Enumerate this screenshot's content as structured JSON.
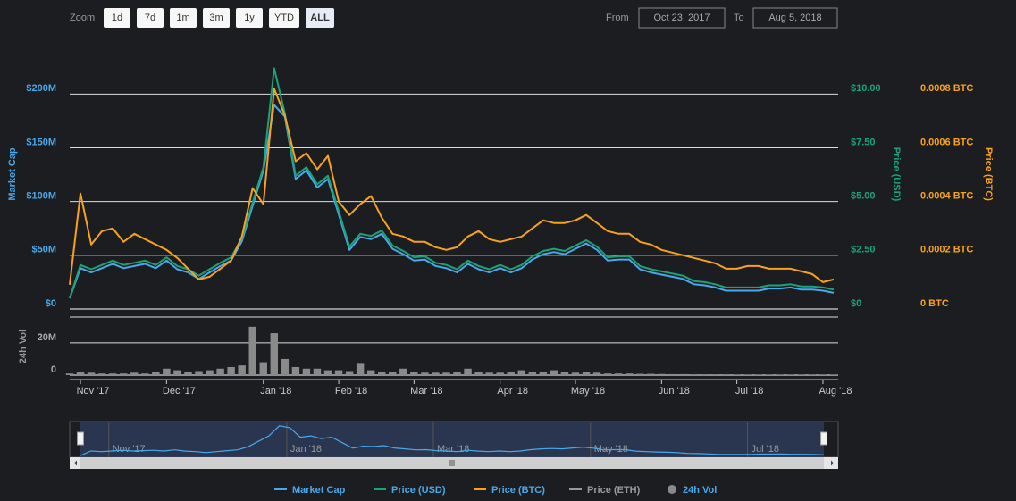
{
  "range_selector": {
    "label": "Zoom",
    "buttons": [
      "1d",
      "7d",
      "1m",
      "3m",
      "1y",
      "YTD",
      "ALL"
    ],
    "selected": 6
  },
  "date_range": {
    "from_label": "From",
    "from": "Oct 23, 2017",
    "to_label": "To",
    "to": "Aug 5, 2018"
  },
  "chart_data": {
    "type": "line",
    "y_axis_title": "Market Cap",
    "vol_axis_title": "24h Vol",
    "y2_axis_title": "Price (USD)",
    "y3_axis_title": "Price (BTC)",
    "categories": [
      null,
      "Nov '17",
      null,
      null,
      null,
      null,
      null,
      null,
      null,
      "Dec '17",
      null,
      null,
      null,
      null,
      null,
      null,
      null,
      null,
      "Jan '18",
      null,
      null,
      null,
      null,
      null,
      null,
      "Feb '18",
      null,
      null,
      null,
      null,
      null,
      null,
      "Mar '18",
      null,
      null,
      null,
      null,
      null,
      null,
      null,
      "Apr '18",
      null,
      null,
      null,
      null,
      null,
      null,
      "May '18",
      null,
      null,
      null,
      null,
      null,
      null,
      null,
      "Jun '18",
      null,
      null,
      null,
      null,
      null,
      null,
      "Jul '18",
      null,
      null,
      null,
      null,
      null,
      null,
      null,
      "Aug '18",
      null
    ],
    "series": [
      {
        "name": "Market Cap",
        "color": "#4aa8e8",
        "axis": "y",
        "values": [
          10,
          38,
          34,
          38,
          42,
          38,
          40,
          42,
          38,
          45,
          37,
          34,
          28,
          34,
          40,
          45,
          63,
          96,
          129,
          190,
          179,
          121,
          129,
          113,
          121,
          88,
          55,
          67,
          65,
          70,
          56,
          51,
          45,
          46,
          40,
          38,
          34,
          42,
          37,
          34,
          38,
          34,
          38,
          46,
          51,
          53,
          51,
          56,
          61,
          55,
          45,
          46,
          46,
          37,
          34,
          32,
          30,
          28,
          23,
          22,
          20,
          17,
          17,
          17,
          17,
          19,
          19,
          20,
          18,
          18,
          17,
          15
        ]
      },
      {
        "name": "Price (USD)",
        "color": "#1aa37a",
        "axis": "y2",
        "values": [
          0.5,
          2.05,
          1.85,
          2.05,
          2.25,
          2.05,
          2.15,
          2.25,
          2.05,
          2.4,
          2.0,
          1.85,
          1.55,
          1.85,
          2.15,
          2.4,
          3.3,
          4.95,
          6.6,
          11.2,
          9.1,
          6.2,
          6.6,
          5.8,
          6.2,
          4.55,
          2.9,
          3.5,
          3.4,
          3.65,
          2.95,
          2.7,
          2.4,
          2.45,
          2.15,
          2.05,
          1.85,
          2.25,
          2.0,
          1.85,
          2.05,
          1.85,
          2.05,
          2.45,
          2.7,
          2.8,
          2.7,
          2.95,
          3.2,
          2.9,
          2.4,
          2.45,
          2.45,
          2.0,
          1.85,
          1.75,
          1.65,
          1.55,
          1.3,
          1.25,
          1.15,
          1.0,
          1.0,
          1.0,
          1.0,
          1.1,
          1.1,
          1.15,
          1.05,
          1.05,
          1.0,
          0.9
        ]
      },
      {
        "name": "Price (BTC)",
        "color": "#f7a21b",
        "axis": "y3",
        "values": [
          9e-05,
          0.00043,
          0.00024,
          0.00029,
          0.0003,
          0.00025,
          0.00028,
          0.00026,
          0.00024,
          0.00022,
          0.00019,
          0.00015,
          0.00011,
          0.00012,
          0.00015,
          0.00018,
          0.00027,
          0.00045,
          0.00039,
          0.00082,
          0.00072,
          0.00055,
          0.00058,
          0.00052,
          0.00057,
          0.0004,
          0.00035,
          0.00039,
          0.00042,
          0.00034,
          0.00028,
          0.00027,
          0.00025,
          0.00025,
          0.00023,
          0.00022,
          0.00023,
          0.00027,
          0.00029,
          0.00026,
          0.00025,
          0.00026,
          0.00027,
          0.0003,
          0.00033,
          0.00032,
          0.00032,
          0.00033,
          0.00035,
          0.00032,
          0.00029,
          0.00028,
          0.00028,
          0.00025,
          0.00024,
          0.00022,
          0.00021,
          0.0002,
          0.00019,
          0.00018,
          0.00017,
          0.00015,
          0.00015,
          0.00016,
          0.00016,
          0.00015,
          0.00015,
          0.00015,
          0.00014,
          0.00013,
          0.0001,
          0.00011
        ]
      },
      {
        "name": "Price (ETH)",
        "color": "#999999",
        "visible": false
      },
      {
        "name": "24h Vol",
        "color": "#8a8a8a",
        "axis": "vol",
        "type": "column",
        "values": [
          1,
          2,
          1.5,
          1,
          1,
          1,
          1.5,
          1,
          2,
          4,
          3,
          2,
          2.5,
          3,
          4,
          5,
          6,
          30,
          8,
          26,
          10,
          5,
          4,
          4,
          3,
          3,
          2.5,
          7,
          3,
          2,
          2,
          4,
          2,
          1.5,
          1.5,
          1.5,
          2,
          4,
          2,
          1.5,
          1.5,
          2,
          3,
          2,
          2,
          3,
          2,
          1.5,
          2,
          1.5,
          1,
          1,
          1,
          0.8,
          0.8,
          0.7,
          0.6,
          0.6,
          0.5,
          0.5,
          0.5,
          0.5,
          0.4,
          0.4,
          0.4,
          0.4,
          0.4,
          0.4,
          0.4,
          0.4,
          0.4,
          0.4
        ]
      }
    ],
    "ylim": [
      0,
      236
    ],
    "yticks": [
      {
        "value": 0,
        "label": "$0"
      },
      {
        "value": 50,
        "label": "$50M"
      },
      {
        "value": 100,
        "label": "$100M"
      },
      {
        "value": 150,
        "label": "$150M"
      },
      {
        "value": 200,
        "label": "$200M"
      }
    ],
    "y2lim": [
      0,
      11.8
    ],
    "y2ticks": [
      {
        "value": 0,
        "label": "$0"
      },
      {
        "value": 2.5,
        "label": "$2.50"
      },
      {
        "value": 5,
        "label": "$5.00"
      },
      {
        "value": 7.5,
        "label": "$7.50"
      },
      {
        "value": 10,
        "label": "$10.00"
      }
    ],
    "y3lim": [
      0,
      0.000944
    ],
    "y3ticks": [
      {
        "value": 0,
        "label": "0 BTC"
      },
      {
        "value": 0.0002,
        "label": "0.0002 BTC"
      },
      {
        "value": 0.0004,
        "label": "0.0004 BTC"
      },
      {
        "value": 0.0006,
        "label": "0.0006 BTC"
      },
      {
        "value": 0.0008,
        "label": "0.0008 BTC"
      }
    ],
    "vollim": [
      0,
      36
    ],
    "volticks": [
      0,
      {
        "value": 20,
        "label": "20M"
      }
    ],
    "grid": true
  }
}
